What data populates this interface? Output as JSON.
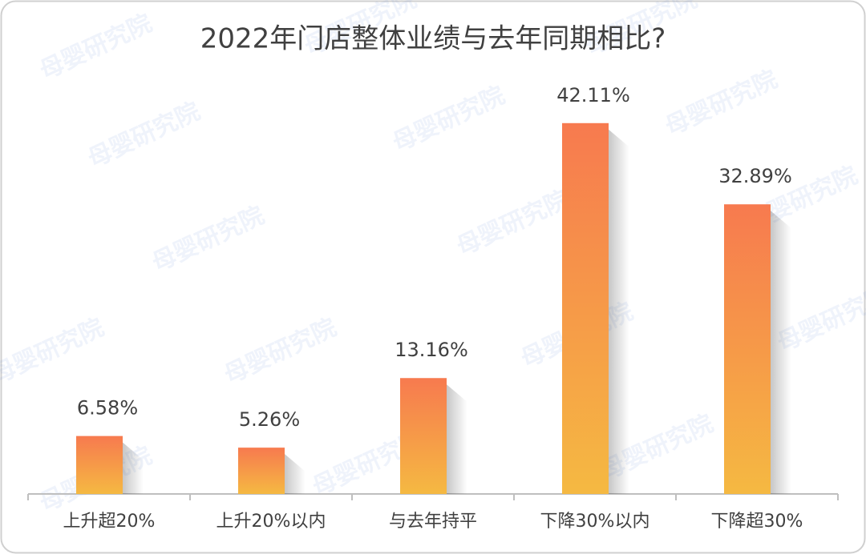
{
  "chart_data": {
    "type": "bar",
    "title": "2022年门店整体业绩与去年同期相比?",
    "categories": [
      "上升超20%",
      "上升20%以内",
      "与去年持平",
      "下降30%以内",
      "下降超30%"
    ],
    "values": [
      6.58,
      5.26,
      13.16,
      42.11,
      32.89
    ],
    "value_labels": [
      "6.58%",
      "5.26%",
      "13.16%",
      "42.11%",
      "32.89%"
    ],
    "color": [
      "#f77a4f",
      "#f5b942"
    ],
    "watermark": "母婴研究院"
  }
}
